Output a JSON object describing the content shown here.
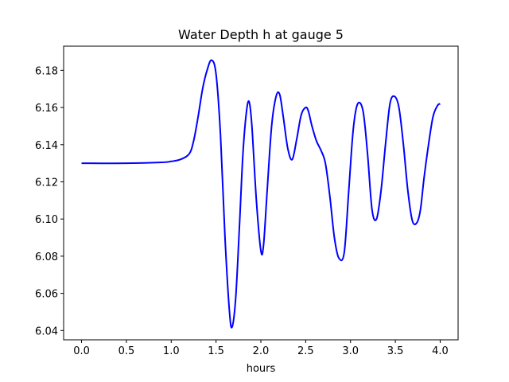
{
  "chart_data": {
    "type": "line",
    "title": "Water Depth h at gauge 5",
    "xlabel": "hours",
    "ylabel": "",
    "xlim": [
      -0.2,
      4.2
    ],
    "ylim": [
      6.035,
      6.193
    ],
    "xticks": [
      0.0,
      0.5,
      1.0,
      1.5,
      2.0,
      2.5,
      3.0,
      3.5,
      4.0
    ],
    "xtick_labels": [
      "0.0",
      "0.5",
      "1.0",
      "1.5",
      "2.0",
      "2.5",
      "3.0",
      "3.5",
      "4.0"
    ],
    "yticks": [
      6.04,
      6.06,
      6.08,
      6.1,
      6.12,
      6.14,
      6.16,
      6.18
    ],
    "ytick_labels": [
      "6.04",
      "6.06",
      "6.08",
      "6.10",
      "6.12",
      "6.14",
      "6.16",
      "6.18"
    ],
    "grid": false,
    "series": [
      {
        "color": "#0000ff",
        "x": [
          0.0,
          0.5,
          0.9,
          1.0,
          1.1,
          1.2,
          1.25,
          1.3,
          1.35,
          1.4,
          1.45,
          1.5,
          1.55,
          1.6,
          1.65,
          1.68,
          1.72,
          1.76,
          1.8,
          1.84,
          1.87,
          1.9,
          1.95,
          2.0,
          2.03,
          2.07,
          2.12,
          2.17,
          2.21,
          2.25,
          2.3,
          2.35,
          2.4,
          2.45,
          2.5,
          2.53,
          2.57,
          2.62,
          2.67,
          2.72,
          2.77,
          2.82,
          2.87,
          2.93,
          2.98,
          3.03,
          3.08,
          3.14,
          3.19,
          3.24,
          3.29,
          3.34,
          3.39,
          3.44,
          3.49,
          3.54,
          3.59,
          3.64,
          3.69,
          3.74,
          3.78,
          3.82,
          3.87,
          3.92,
          3.97,
          4.0
        ],
        "y": [
          6.13,
          6.13,
          6.1305,
          6.131,
          6.132,
          6.135,
          6.142,
          6.155,
          6.17,
          6.18,
          6.1855,
          6.178,
          6.145,
          6.09,
          6.05,
          6.042,
          6.058,
          6.095,
          6.135,
          6.158,
          6.163,
          6.15,
          6.11,
          6.083,
          6.086,
          6.115,
          6.15,
          6.166,
          6.167,
          6.155,
          6.138,
          6.132,
          6.143,
          6.156,
          6.16,
          6.158,
          6.15,
          6.142,
          6.137,
          6.13,
          6.112,
          6.09,
          6.079,
          6.082,
          6.115,
          6.148,
          6.162,
          6.158,
          6.135,
          6.105,
          6.1,
          6.115,
          6.14,
          6.162,
          6.166,
          6.16,
          6.14,
          6.115,
          6.099,
          6.098,
          6.105,
          6.122,
          6.14,
          6.155,
          6.161,
          6.162
        ]
      }
    ]
  }
}
